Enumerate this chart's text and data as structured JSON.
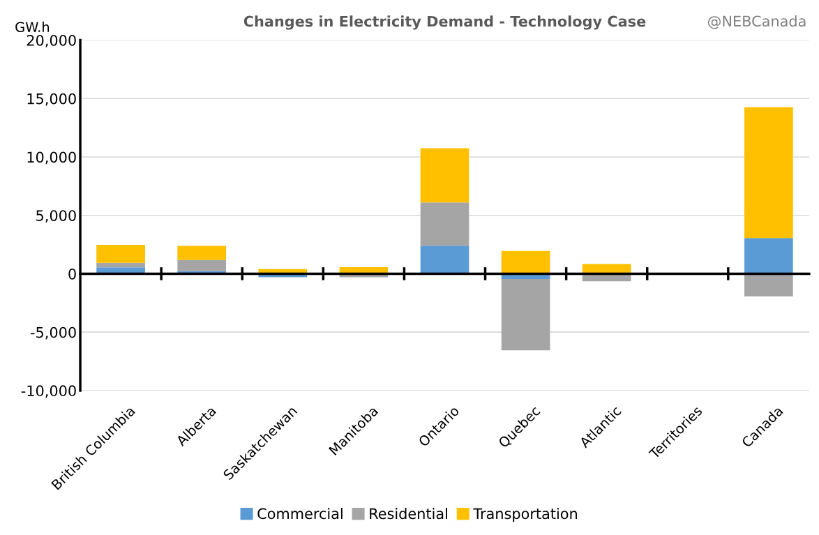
{
  "chart_data": {
    "type": "bar",
    "title": "Changes in Electricity Demand - Technology Case",
    "ylabel": "GW.h",
    "annotations": [
      "@NEBCanada"
    ],
    "categories": [
      "British Columbia",
      "Alberta",
      "Saskatchewan",
      "Manitoba",
      "Ontario",
      "Quebec",
      "Atlantic",
      "Territories",
      "Canada"
    ],
    "stacked": true,
    "series": [
      {
        "name": "Commercial",
        "color": "#5b9bd5",
        "values": [
          550,
          220,
          -300,
          null,
          2400,
          -450,
          null,
          0,
          3050
        ]
      },
      {
        "name": "Residential",
        "color": "#a5a5a5",
        "values": [
          380,
          950,
          0,
          -300,
          3700,
          -6100,
          -650,
          0,
          -1950
        ]
      },
      {
        "name": "Transportation",
        "color": "#ffc000",
        "values": [
          1550,
          1220,
          400,
          560,
          4650,
          1950,
          840,
          0,
          11200
        ]
      }
    ],
    "ylim": [
      -10000,
      20000
    ],
    "yticks": [
      {
        "value": -10000,
        "label": "-10,000"
      },
      {
        "value": -5000,
        "label": "-5,000"
      },
      {
        "value": 0,
        "label": "0"
      },
      {
        "value": 5000,
        "label": "5,000"
      },
      {
        "value": 10000,
        "label": "10,000"
      },
      {
        "value": 15000,
        "label": "15,000"
      },
      {
        "value": 20000,
        "label": "20,000"
      }
    ],
    "grid": "y",
    "legend": "bottom"
  }
}
